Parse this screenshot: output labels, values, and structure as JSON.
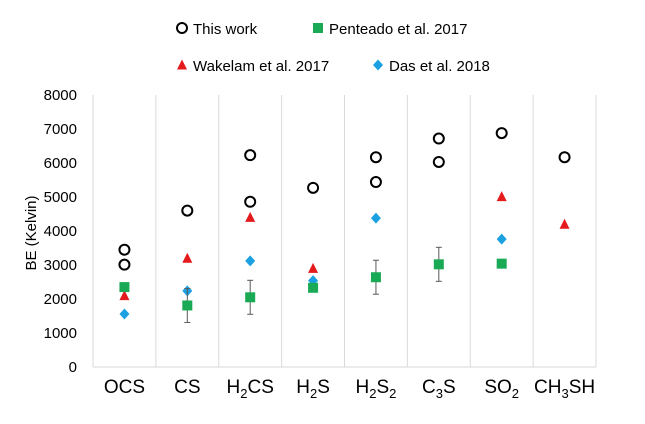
{
  "chart_data": {
    "type": "scatter",
    "title": "",
    "xlabel": "",
    "ylabel": "BE (Kelvin)",
    "ylim": [
      0,
      8000
    ],
    "yticks": [
      0,
      1000,
      2000,
      3000,
      4000,
      5000,
      6000,
      7000,
      8000
    ],
    "grid": "vertical-category-lines",
    "legend_position": "top",
    "categories": [
      {
        "main": "OCS"
      },
      {
        "main": "CS"
      },
      {
        "main": "H",
        "sub": "2",
        "tail": "CS"
      },
      {
        "main": "H",
        "sub": "2",
        "tail": "S"
      },
      {
        "main": "H",
        "sub": "2",
        "tail": "S",
        "sub2": "2"
      },
      {
        "main": "C",
        "sub": "3",
        "tail": "S"
      },
      {
        "main": "SO",
        "sub": "2"
      },
      {
        "main": "CH",
        "sub": "3",
        "tail": "SH"
      }
    ],
    "series": [
      {
        "name": "This work",
        "marker": "circle-open",
        "color": "#000000",
        "points": [
          {
            "x": 0,
            "y": 3450
          },
          {
            "x": 0,
            "y": 3010
          },
          {
            "x": 1,
            "y": 4600
          },
          {
            "x": 2,
            "y": 6230
          },
          {
            "x": 2,
            "y": 4860
          },
          {
            "x": 3,
            "y": 5270
          },
          {
            "x": 4,
            "y": 6170
          },
          {
            "x": 4,
            "y": 5440
          },
          {
            "x": 5,
            "y": 6720
          },
          {
            "x": 5,
            "y": 6030
          },
          {
            "x": 6,
            "y": 6880
          },
          {
            "x": 7,
            "y": 6170
          }
        ]
      },
      {
        "name": "Penteado et al. 2017",
        "marker": "square",
        "color": "#1aaa55",
        "points": [
          {
            "x": 0,
            "y": 2350
          },
          {
            "x": 1,
            "y": 1810,
            "err": 500
          },
          {
            "x": 2,
            "y": 2050,
            "err": 500
          },
          {
            "x": 3,
            "y": 2330
          },
          {
            "x": 4,
            "y": 2640,
            "err": 500
          },
          {
            "x": 5,
            "y": 3020,
            "err": 500
          },
          {
            "x": 6,
            "y": 3040
          }
        ]
      },
      {
        "name": "Wakelam et al. 2017",
        "marker": "triangle",
        "color": "#e41a1c",
        "points": [
          {
            "x": 0,
            "y": 2100
          },
          {
            "x": 1,
            "y": 3200
          },
          {
            "x": 2,
            "y": 4400
          },
          {
            "x": 3,
            "y": 2900
          },
          {
            "x": 6,
            "y": 5010
          },
          {
            "x": 7,
            "y": 4200
          }
        ]
      },
      {
        "name": "Das et al. 2018",
        "marker": "diamond",
        "color": "#1ba1e2",
        "points": [
          {
            "x": 0,
            "y": 1560
          },
          {
            "x": 1,
            "y": 2240
          },
          {
            "x": 2,
            "y": 3120
          },
          {
            "x": 3,
            "y": 2540
          },
          {
            "x": 4,
            "y": 4380
          },
          {
            "x": 6,
            "y": 3760
          }
        ]
      }
    ]
  }
}
